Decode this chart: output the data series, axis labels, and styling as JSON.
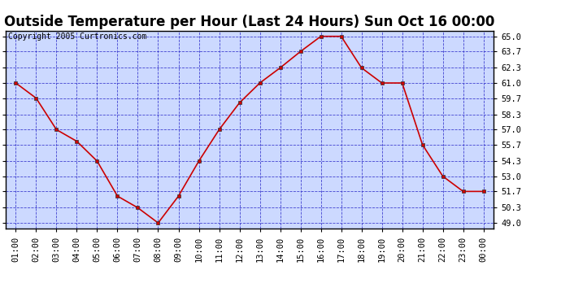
{
  "title": "Outside Temperature per Hour (Last 24 Hours) Sun Oct 16 00:00",
  "copyright": "Copyright 2005 Curtronics.com",
  "x_labels": [
    "01:00",
    "02:00",
    "03:00",
    "04:00",
    "05:00",
    "06:00",
    "07:00",
    "08:00",
    "09:00",
    "10:00",
    "11:00",
    "12:00",
    "13:00",
    "14:00",
    "15:00",
    "16:00",
    "17:00",
    "18:00",
    "19:00",
    "20:00",
    "21:00",
    "22:00",
    "23:00",
    "00:00"
  ],
  "y_values": [
    61.0,
    59.7,
    57.0,
    56.0,
    54.3,
    51.3,
    50.3,
    49.0,
    51.3,
    54.3,
    57.0,
    59.3,
    61.0,
    62.3,
    63.7,
    65.0,
    65.0,
    62.3,
    61.0,
    61.0,
    55.7,
    53.0,
    51.7,
    51.7
  ],
  "y_ticks": [
    49.0,
    50.3,
    51.7,
    53.0,
    54.3,
    55.7,
    57.0,
    58.3,
    59.7,
    61.0,
    62.3,
    63.7,
    65.0
  ],
  "y_min": 48.5,
  "y_max": 65.5,
  "line_color": "#cc0000",
  "marker_color": "#cc0000",
  "bg_color": "#ccd9ff",
  "fig_bg_color": "#ffffff",
  "grid_color": "#3333cc",
  "title_fontsize": 12,
  "tick_fontsize": 7.5,
  "copyright_fontsize": 7
}
